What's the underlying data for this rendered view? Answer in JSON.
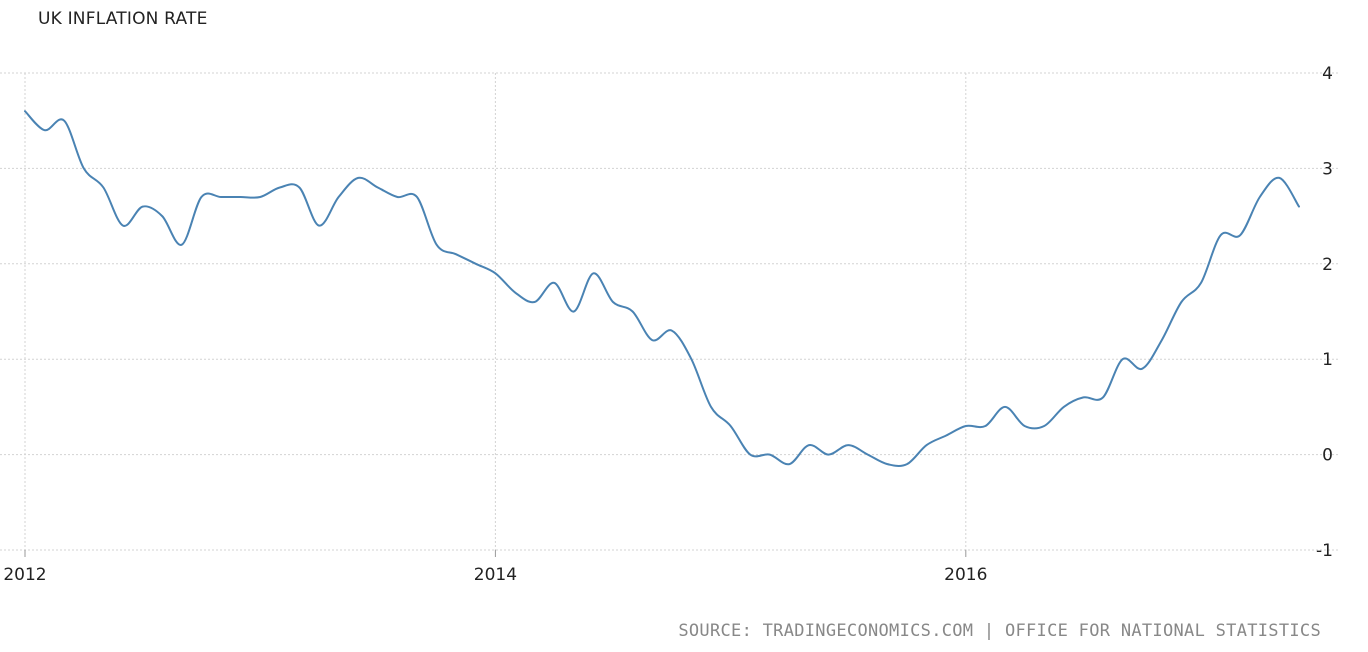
{
  "chart_data": {
    "type": "line",
    "title": "UK INFLATION RATE",
    "xlabel": "",
    "ylabel": "",
    "ylim": [
      -1,
      4
    ],
    "xlim": [
      "2012-01",
      "2017-06"
    ],
    "y_ticks": [
      "4",
      "3",
      "2",
      "1",
      "0",
      "-1"
    ],
    "x_ticks": [
      "2012",
      "2014",
      "2016"
    ],
    "grid": true,
    "y_axis_position": "right",
    "colors": {
      "line": "#4a83b3",
      "grid": "#d3d3d3"
    },
    "series": [
      {
        "x": [
          "2012-01",
          "2012-02",
          "2012-03",
          "2012-04",
          "2012-05",
          "2012-06",
          "2012-07",
          "2012-08",
          "2012-09",
          "2012-10",
          "2012-11",
          "2012-12",
          "2013-01",
          "2013-02",
          "2013-03",
          "2013-04",
          "2013-05",
          "2013-06",
          "2013-07",
          "2013-08",
          "2013-09",
          "2013-10",
          "2013-11",
          "2013-12",
          "2014-01",
          "2014-02",
          "2014-03",
          "2014-04",
          "2014-05",
          "2014-06",
          "2014-07",
          "2014-08",
          "2014-09",
          "2014-10",
          "2014-11",
          "2014-12",
          "2015-01",
          "2015-02",
          "2015-03",
          "2015-04",
          "2015-05",
          "2015-06",
          "2015-07",
          "2015-08",
          "2015-09",
          "2015-10",
          "2015-11",
          "2015-12",
          "2016-01",
          "2016-02",
          "2016-03",
          "2016-04",
          "2016-05",
          "2016-06",
          "2016-07",
          "2016-08",
          "2016-09",
          "2016-10",
          "2016-11",
          "2016-12",
          "2017-01",
          "2017-02",
          "2017-03",
          "2017-04",
          "2017-05",
          "2017-06"
        ],
        "values": [
          3.6,
          3.4,
          3.5,
          3.0,
          2.8,
          2.4,
          2.6,
          2.5,
          2.2,
          2.7,
          2.7,
          2.7,
          2.7,
          2.8,
          2.8,
          2.4,
          2.7,
          2.9,
          2.8,
          2.7,
          2.7,
          2.2,
          2.1,
          2.0,
          1.9,
          1.7,
          1.6,
          1.8,
          1.5,
          1.9,
          1.6,
          1.5,
          1.2,
          1.3,
          1.0,
          0.5,
          0.3,
          0.0,
          0.0,
          -0.1,
          0.1,
          0.0,
          0.1,
          0.0,
          -0.1,
          -0.1,
          0.1,
          0.2,
          0.3,
          0.3,
          0.5,
          0.3,
          0.3,
          0.5,
          0.6,
          0.6,
          1.0,
          0.9,
          1.2,
          1.6,
          1.8,
          2.3,
          2.3,
          2.7,
          2.9,
          2.6
        ]
      }
    ]
  },
  "source": "SOURCE: TRADINGECONOMICS.COM | OFFICE FOR NATIONAL STATISTICS"
}
